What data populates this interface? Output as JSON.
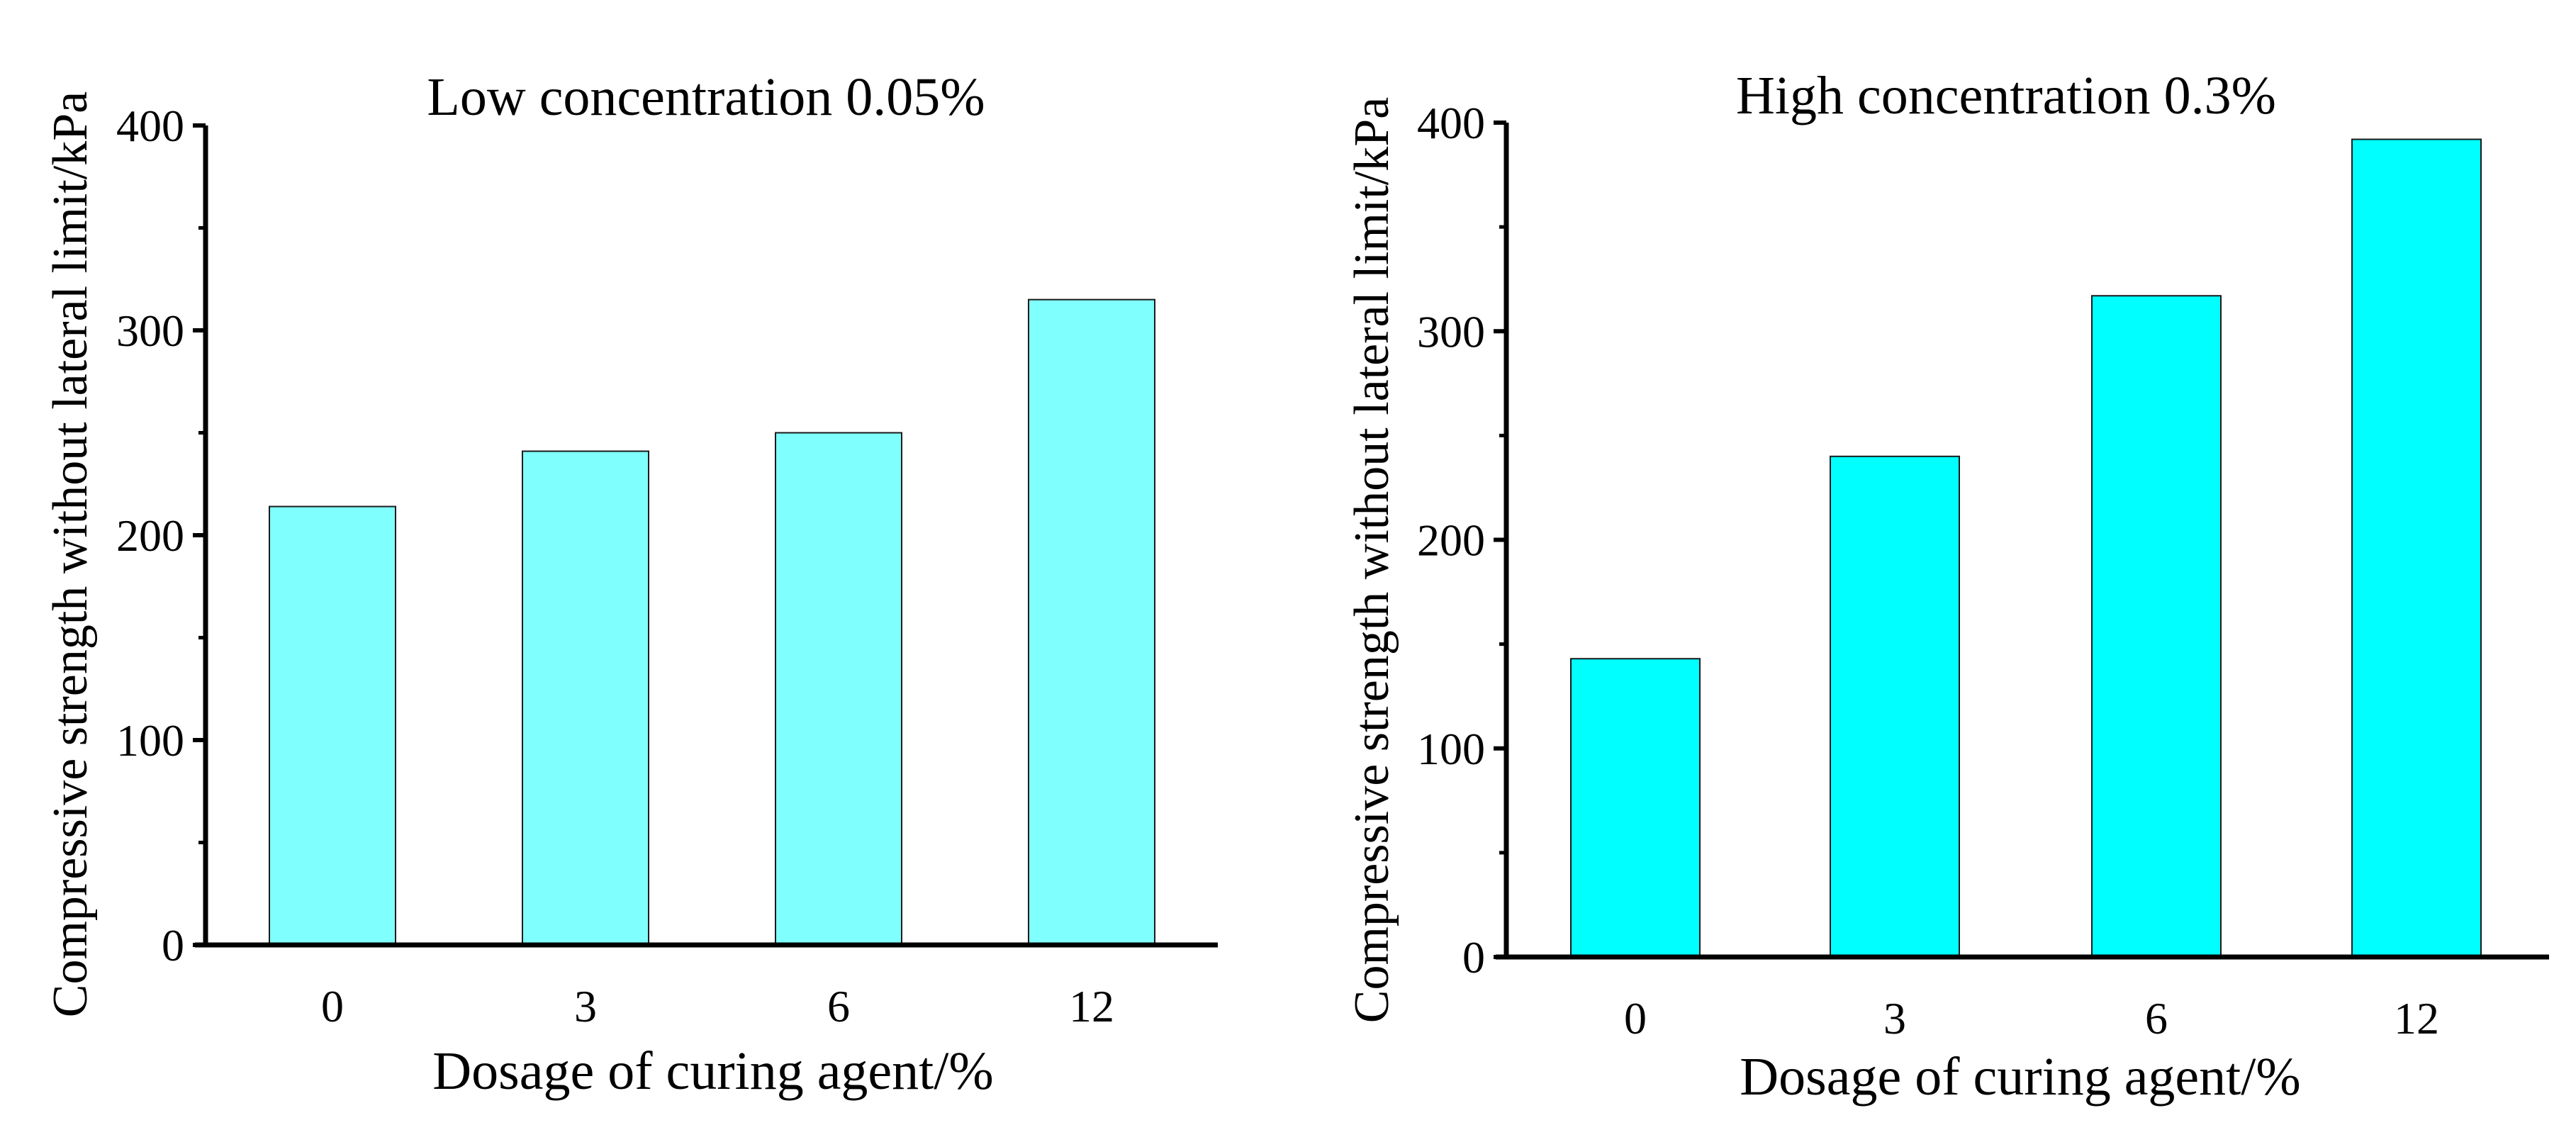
{
  "chart_data": [
    {
      "type": "bar",
      "title": "Low concentration 0.05%",
      "xlabel": "Dosage of curing agent/%",
      "ylabel": "Compressive strength without lateral limit/kPa",
      "categories": [
        "0",
        "3",
        "6",
        "12"
      ],
      "values": [
        214,
        241,
        250,
        315
      ],
      "ylim": [
        0,
        400
      ],
      "yticks": [
        0,
        100,
        200,
        300,
        400
      ],
      "bar_color": "#80FFFF",
      "grid": false
    },
    {
      "type": "bar",
      "title": "High concentration 0.3%",
      "xlabel": "Dosage of curing agent/%",
      "ylabel": "Compressive strength without lateral limit/kPa",
      "categories": [
        "0",
        "3",
        "6",
        "12"
      ],
      "values": [
        143,
        240,
        317,
        392
      ],
      "ylim": [
        0,
        400
      ],
      "yticks": [
        0,
        100,
        200,
        300,
        400
      ],
      "bar_color": "#00FFFF",
      "grid": false
    }
  ]
}
